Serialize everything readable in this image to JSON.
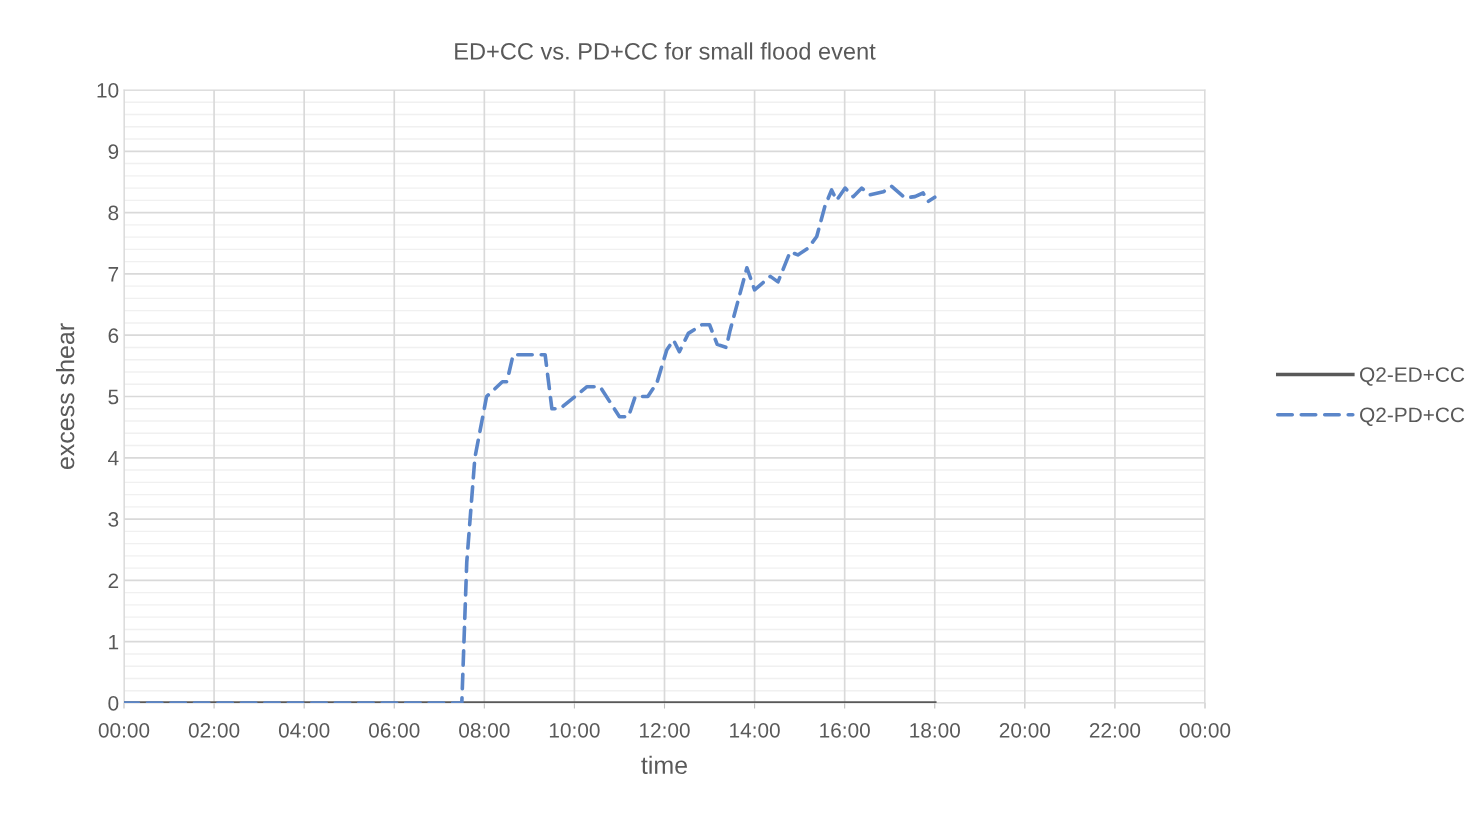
{
  "chart_data": {
    "type": "line",
    "title": "ED+CC vs. PD+CC for small flood event",
    "xlabel": "time",
    "ylabel": "excess shear",
    "xlim": [
      0,
      24
    ],
    "ylim": [
      0,
      10
    ],
    "xticks": [
      {
        "value": 0,
        "label": "00:00"
      },
      {
        "value": 2,
        "label": "02:00"
      },
      {
        "value": 4,
        "label": "04:00"
      },
      {
        "value": 6,
        "label": "06:00"
      },
      {
        "value": 8,
        "label": "08:00"
      },
      {
        "value": 10,
        "label": "10:00"
      },
      {
        "value": 12,
        "label": "12:00"
      },
      {
        "value": 14,
        "label": "14:00"
      },
      {
        "value": 16,
        "label": "16:00"
      },
      {
        "value": 18,
        "label": "18:00"
      },
      {
        "value": 20,
        "label": "20:00"
      },
      {
        "value": 22,
        "label": "22:00"
      },
      {
        "value": 24,
        "label": "00:00"
      }
    ],
    "yticks": [
      0,
      1,
      2,
      3,
      4,
      5,
      6,
      7,
      8,
      9,
      10
    ],
    "grid": true,
    "legend": "right",
    "marker": "none",
    "series": [
      {
        "name": "Q2-ED+CC",
        "color": "#595959",
        "line_style": "solid",
        "x": [
          0,
          18
        ],
        "values": [
          0,
          0
        ]
      },
      {
        "name": "Q2-PD+CC",
        "color": "#5b86c9",
        "line_style": "dashed",
        "x": [
          0,
          7.5,
          7.61,
          7.79,
          8.05,
          8.4,
          8.5,
          8.64,
          9.35,
          9.5,
          9.68,
          10.28,
          10.57,
          11.0,
          11.2,
          11.35,
          11.63,
          11.83,
          12.05,
          12.2,
          12.33,
          12.53,
          12.83,
          13.0,
          13.17,
          13.37,
          13.45,
          13.83,
          14.0,
          14.35,
          14.52,
          14.79,
          14.96,
          15.19,
          15.38,
          15.56,
          15.71,
          15.82,
          16.01,
          16.19,
          16.38,
          16.56,
          16.86,
          17.04,
          17.34,
          17.56,
          17.74,
          17.85,
          18.0
        ],
        "values": [
          0,
          0,
          2.3,
          4.0,
          5.0,
          5.24,
          5.24,
          5.68,
          5.68,
          4.8,
          4.8,
          5.16,
          5.16,
          4.67,
          4.67,
          5.0,
          5.0,
          5.22,
          5.76,
          5.92,
          5.73,
          6.03,
          6.17,
          6.17,
          5.85,
          5.8,
          6.06,
          7.1,
          6.74,
          6.96,
          6.87,
          7.36,
          7.31,
          7.42,
          7.61,
          8.1,
          8.37,
          8.2,
          8.4,
          8.26,
          8.4,
          8.29,
          8.34,
          8.43,
          8.24,
          8.26,
          8.32,
          8.18,
          8.25
        ]
      }
    ]
  }
}
